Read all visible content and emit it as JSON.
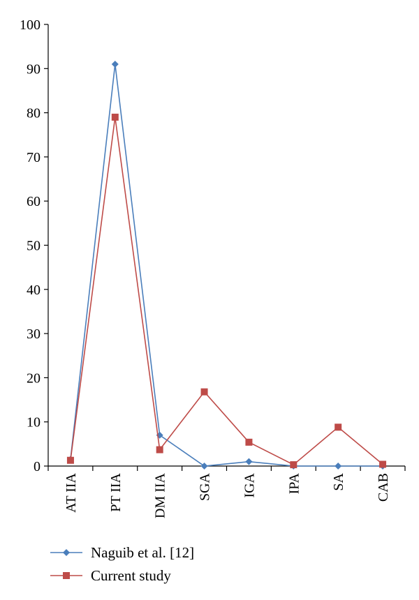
{
  "chart_data": {
    "type": "line",
    "title": "",
    "xlabel": "",
    "ylabel": "",
    "ylim": [
      0,
      100
    ],
    "yticks": [
      "0",
      "10",
      "20",
      "30",
      "40",
      "50",
      "60",
      "70",
      "80",
      "90",
      "100"
    ],
    "categories": [
      "AT IIA",
      "PT IIA",
      "DM IIA",
      "SGA",
      "IGA",
      "IPA",
      "SA",
      "CAB"
    ],
    "grid": false,
    "legend_position": "bottom-left",
    "series": [
      {
        "name": "Naguib et al. [12]",
        "marker": "diamond",
        "color": "#4a7ebb",
        "values": [
          1.5,
          91,
          7,
          0,
          1,
          0,
          0,
          0
        ]
      },
      {
        "name": "Current study",
        "marker": "square",
        "color": "#be4b48",
        "values": [
          1.3,
          79,
          3.7,
          16.8,
          5.4,
          0.3,
          8.8,
          0.4
        ]
      }
    ]
  }
}
